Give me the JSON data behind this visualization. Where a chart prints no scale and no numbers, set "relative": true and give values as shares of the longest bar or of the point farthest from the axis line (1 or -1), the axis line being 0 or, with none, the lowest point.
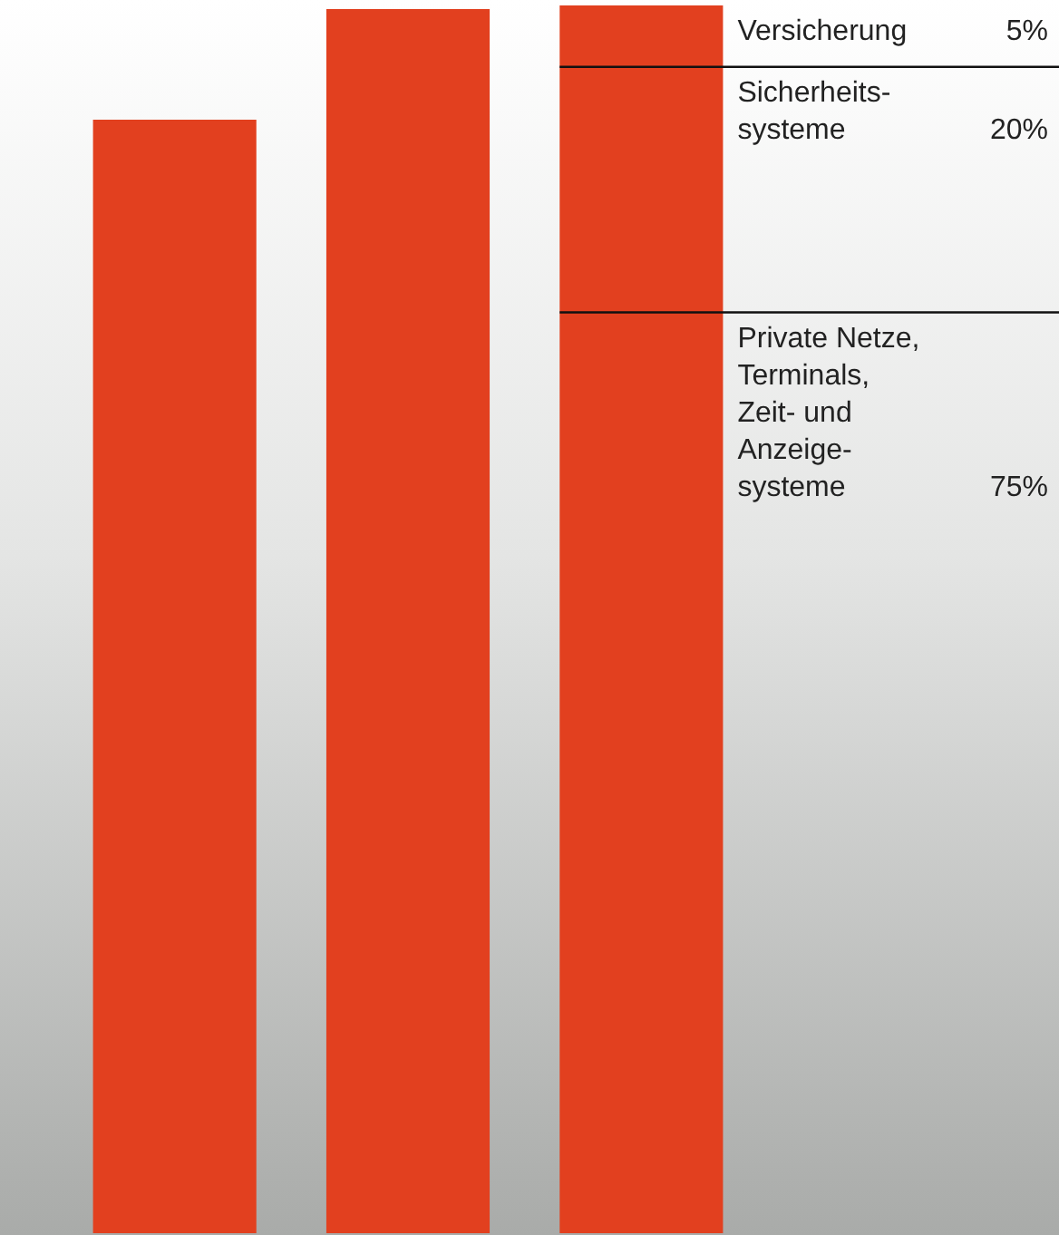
{
  "chart_data": {
    "type": "bar",
    "relative": true,
    "legend": false,
    "categories": [
      null,
      null,
      null
    ],
    "series": [
      {
        "color": "#e2401f",
        "values": [
          0.907,
          0.997,
          1
        ]
      }
    ],
    "ref_lines": [
      {
        "axis": "y",
        "value": 0.95,
        "color": "#111111"
      },
      {
        "axis": "y",
        "value": 0.75,
        "color": "#111111"
      }
    ],
    "annotations": [
      "Versicherung",
      "5%",
      "Sicherheits-\nsysteme",
      "20%",
      "Private Netze,\nTerminals,\nZeit- und\nAnzeige-\nsysteme",
      "75%"
    ]
  }
}
